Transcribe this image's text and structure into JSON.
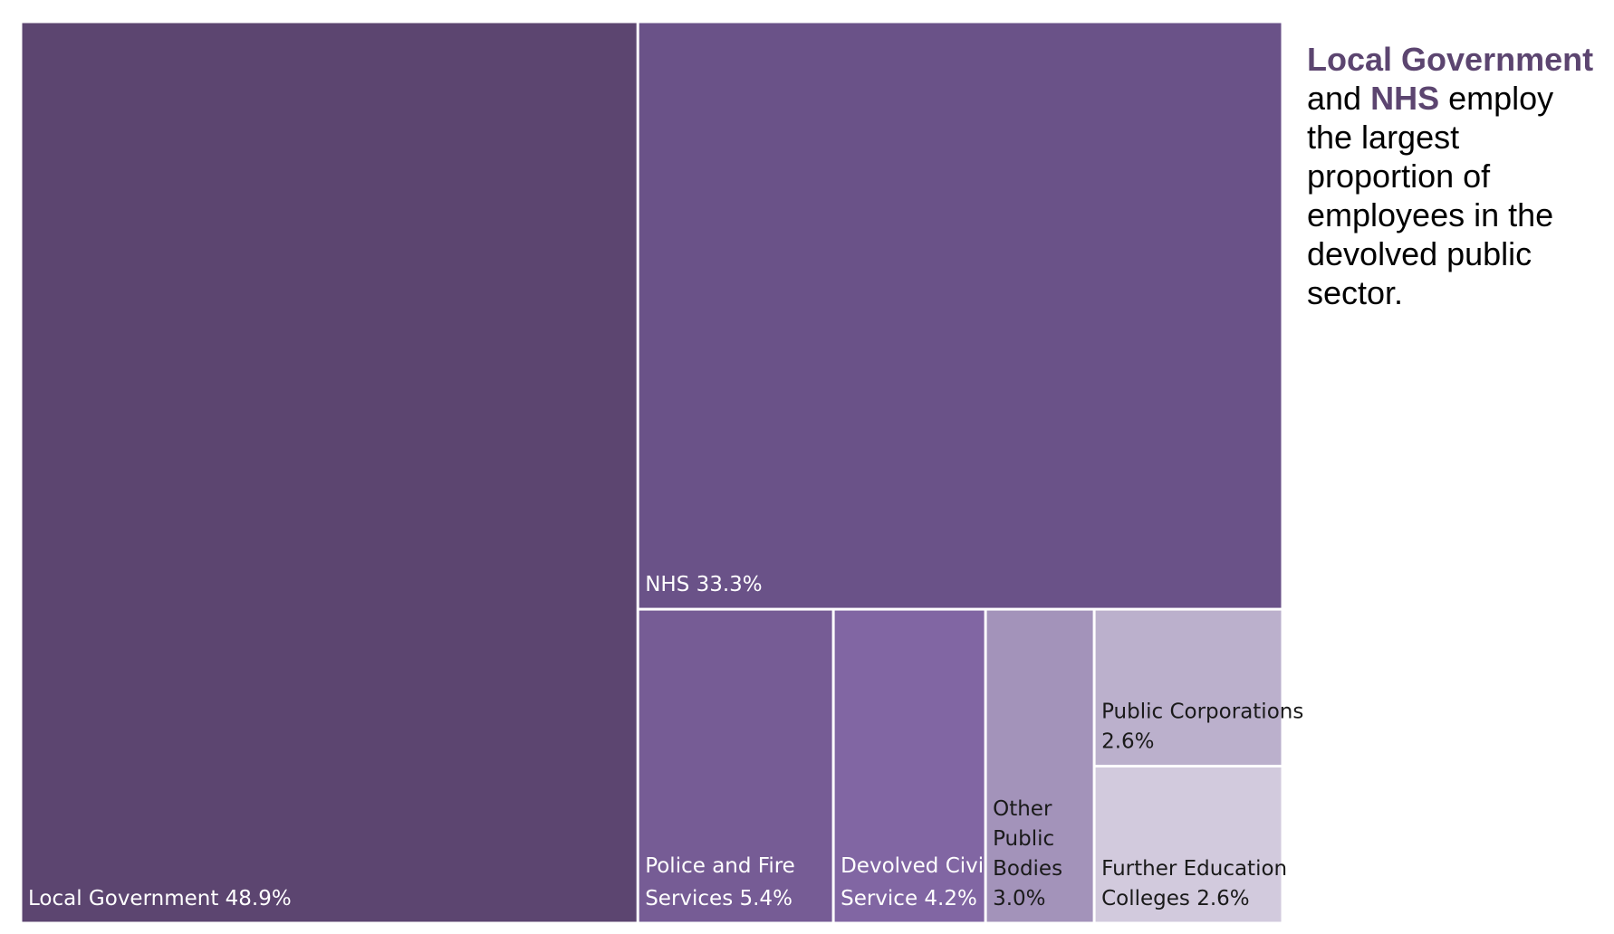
{
  "chart_data": {
    "type": "treemap",
    "title": "",
    "unit": "%",
    "items": [
      {
        "label": "Local Government",
        "value": 48.9,
        "value_label": "48.9%",
        "color": "#5c4570",
        "text_color": "#ffffff"
      },
      {
        "label": "NHS",
        "value": 33.3,
        "value_label": "33.3%",
        "color": "#6a5288",
        "text_color": "#ffffff"
      },
      {
        "label": "Police and Fire Services",
        "value": 5.4,
        "value_label": "5.4%",
        "color": "#765c95",
        "text_color": "#ffffff"
      },
      {
        "label": "Devolved Civil Service",
        "value": 4.2,
        "value_label": "4.2%",
        "color": "#8166a3",
        "text_color": "#ffffff"
      },
      {
        "label": "Other Public Bodies",
        "value": 3.0,
        "value_label": "3.0%",
        "color": "#a393ba",
        "text_color": "#1a1a1a"
      },
      {
        "label": "Public Corporations",
        "value": 2.6,
        "value_label": "2.6%",
        "color": "#bbb0cc",
        "text_color": "#1a1a1a"
      },
      {
        "label": "Further Education Colleges",
        "value": 2.6,
        "value_label": "2.6%",
        "color": "#d2cadd",
        "text_color": "#1a1a1a"
      }
    ]
  },
  "annotation": {
    "highlight_color": "#5c4570",
    "part1": "Local Government",
    "part2": "and",
    "part3": "NHS",
    "part4": "employ the largest proportion of employees in the devolved public sector."
  }
}
